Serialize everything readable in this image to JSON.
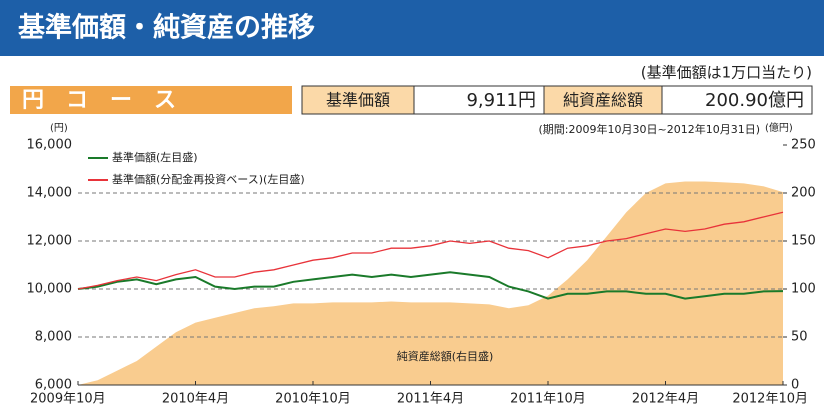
{
  "header": {
    "title": "基準価額・純資産の推移",
    "note": "(基準価額は1万口当たり)",
    "course": "円　コ　ー　ス"
  },
  "table": {
    "cells": [
      "基準価額",
      "9,911円",
      "純資産総額",
      "200.90億円"
    ]
  },
  "chart_data": {
    "type": "line",
    "period": "(期間:2009年10月30日~2012年10月31日)",
    "y_unit": "(円)",
    "y2_unit": "(億円)",
    "annotation": "純資産総額(右目盛)",
    "categories": [
      "2009年10月",
      null,
      null,
      null,
      null,
      null,
      "2010年4月",
      null,
      null,
      null,
      null,
      null,
      "2010年10月",
      null,
      null,
      null,
      null,
      null,
      "2011年4月",
      null,
      null,
      null,
      null,
      null,
      "2011年10月",
      null,
      null,
      null,
      null,
      null,
      "2012年4月",
      null,
      null,
      null,
      null,
      null,
      "2012年10月"
    ],
    "ylim": [
      6000,
      16000
    ],
    "yticks": [
      {
        "value": 6000,
        "label": "6,000"
      },
      {
        "value": 8000,
        "label": "8,000"
      },
      {
        "value": 10000,
        "label": "10,000"
      },
      {
        "value": 12000,
        "label": "12,000"
      },
      {
        "value": 14000,
        "label": "14,000"
      },
      {
        "value": 16000,
        "label": "16,000"
      }
    ],
    "y2lim": [
      0,
      250
    ],
    "y2ticks": [
      0,
      50,
      100,
      150,
      200,
      250
    ],
    "grid": true,
    "series": [
      {
        "name": "純資産総額(右目盛)",
        "style": "area",
        "axis": "y2",
        "color": "#f9cc8f",
        "values": [
          0,
          5,
          15,
          25,
          40,
          55,
          65,
          70,
          75,
          80,
          82,
          85,
          85,
          86,
          86,
          86,
          87,
          86,
          86,
          86,
          85,
          84,
          80,
          83,
          93,
          110,
          130,
          155,
          180,
          200,
          210,
          212,
          212,
          211,
          210,
          207,
          200.9
        ]
      },
      {
        "name": "基準価額(左目盛)",
        "style": "line",
        "color": "#1a7a2a",
        "values": [
          10000,
          10100,
          10300,
          10400,
          10200,
          10400,
          10500,
          10100,
          10000,
          10100,
          10100,
          10300,
          10400,
          10500,
          10600,
          10500,
          10600,
          10500,
          10600,
          10700,
          10600,
          10500,
          10100,
          9900,
          9600,
          9800,
          9800,
          9900,
          9900,
          9800,
          9800,
          9600,
          9700,
          9800,
          9800,
          9900,
          9911
        ]
      },
      {
        "name": "基準価額(分配金再投資ベース)(左目盛)",
        "style": "line",
        "color": "#e8333a",
        "values": [
          10000,
          10150,
          10350,
          10500,
          10350,
          10600,
          10800,
          10500,
          10500,
          10700,
          10800,
          11000,
          11200,
          11300,
          11500,
          11500,
          11700,
          11700,
          11800,
          12000,
          11900,
          12000,
          11700,
          11600,
          11300,
          11700,
          11800,
          12000,
          12100,
          12300,
          12500,
          12400,
          12500,
          12700,
          12800,
          13000,
          13200
        ]
      }
    ]
  }
}
